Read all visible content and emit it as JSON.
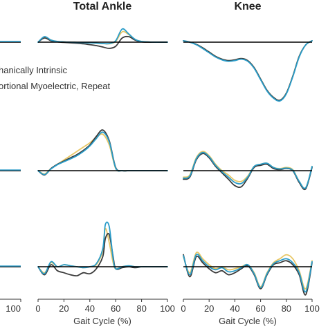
{
  "chart_data": [
    {
      "type": "line",
      "title": "Total Ankle",
      "row": 1,
      "xlabel": "",
      "x": [
        0,
        5,
        10,
        15,
        20,
        25,
        30,
        35,
        40,
        45,
        50,
        55,
        60,
        65,
        70,
        75,
        80,
        85,
        90,
        95,
        100
      ],
      "series": [
        {
          "name": "Mechanically Intrinsic",
          "color": "#e8c766",
          "values": [
            0,
            0.35,
            0.15,
            0.05,
            0.02,
            0,
            -0.02,
            -0.03,
            -0.05,
            -0.08,
            -0.1,
            -0.12,
            0.05,
            0.75,
            0.55,
            0.2,
            0.05,
            0.02,
            0,
            0,
            0
          ]
        },
        {
          "name": "Proportional Myoelectric",
          "color": "#3a3a3a",
          "values": [
            0,
            0.3,
            0.1,
            0.02,
            -0.02,
            -0.05,
            -0.08,
            -0.12,
            -0.18,
            -0.25,
            -0.35,
            -0.45,
            -0.3,
            0.3,
            0.4,
            0.15,
            0.02,
            0,
            0,
            0,
            0
          ]
        },
        {
          "name": "Proportional Myoelectric, Repeat",
          "color": "#2a9cc9",
          "values": [
            0,
            0.4,
            0.15,
            0.05,
            0.02,
            0,
            -0.02,
            -0.03,
            -0.05,
            -0.07,
            -0.1,
            -0.1,
            0.1,
            0.95,
            0.6,
            0.2,
            0.05,
            0.02,
            0,
            0,
            0
          ]
        }
      ]
    },
    {
      "type": "line",
      "title": "Knee",
      "row": 1,
      "xlabel": "",
      "x": [
        0,
        5,
        10,
        15,
        20,
        25,
        30,
        35,
        40,
        45,
        50,
        55,
        60,
        65,
        70,
        75,
        80,
        85,
        90,
        95,
        100
      ],
      "series": [
        {
          "name": "Mechanically Intrinsic",
          "color": "#e8c766",
          "values": [
            0.1,
            0,
            -0.15,
            -0.4,
            -0.7,
            -1,
            -1.2,
            -1.3,
            -1.25,
            -1.15,
            -1.3,
            -1.8,
            -2.6,
            -3.4,
            -3.9,
            -4.1,
            -3.6,
            -2.4,
            -1,
            -0.2,
            0.1
          ]
        },
        {
          "name": "Proportional Myoelectric",
          "color": "#3a3a3a",
          "values": [
            0.1,
            0,
            -0.15,
            -0.4,
            -0.7,
            -1,
            -1.2,
            -1.3,
            -1.25,
            -1.15,
            -1.3,
            -1.8,
            -2.6,
            -3.4,
            -3.9,
            -4.1,
            -3.6,
            -2.4,
            -1,
            -0.2,
            0.1
          ]
        },
        {
          "name": "Proportional Myoelectric, Repeat",
          "color": "#2a9cc9",
          "values": [
            0.1,
            0,
            -0.18,
            -0.45,
            -0.75,
            -1.05,
            -1.25,
            -1.35,
            -1.3,
            -1.2,
            -1.35,
            -1.85,
            -2.65,
            -3.45,
            -3.95,
            -4.15,
            -3.65,
            -2.45,
            -1.05,
            -0.2,
            0.1
          ]
        }
      ]
    },
    {
      "type": "line",
      "row": 2,
      "xlabel": "",
      "x": [
        0,
        5,
        10,
        15,
        20,
        25,
        30,
        35,
        40,
        45,
        50,
        55,
        60,
        65,
        70,
        75,
        80,
        85,
        90,
        95,
        100
      ],
      "series": [
        {
          "name": "Mechanically Intrinsic",
          "color": "#e8c766",
          "values": [
            0,
            -0.15,
            0.1,
            0.3,
            0.5,
            0.7,
            0.9,
            1.1,
            1.3,
            1.55,
            1.7,
            1.2,
            0.1,
            0,
            0,
            0,
            0,
            0,
            0,
            0,
            0
          ]
        },
        {
          "name": "Proportional Myoelectric",
          "color": "#3a3a3a",
          "values": [
            0,
            -0.2,
            0.1,
            0.3,
            0.45,
            0.6,
            0.75,
            0.95,
            1.2,
            1.6,
            1.9,
            1.4,
            0.15,
            0,
            0,
            0,
            0,
            0,
            0,
            0,
            0
          ]
        },
        {
          "name": "Proportional Myoelectric, Repeat",
          "color": "#2a9cc9",
          "values": [
            0,
            -0.18,
            0.08,
            0.28,
            0.42,
            0.55,
            0.7,
            0.9,
            1.15,
            1.5,
            1.8,
            1.35,
            0.12,
            0,
            0,
            0,
            0,
            0,
            0,
            0,
            0
          ]
        }
      ]
    },
    {
      "type": "line",
      "row": 2,
      "xlabel": "",
      "x": [
        0,
        5,
        10,
        15,
        20,
        25,
        30,
        35,
        40,
        45,
        50,
        55,
        60,
        65,
        70,
        75,
        80,
        85,
        90,
        95,
        100
      ],
      "series": [
        {
          "name": "Mechanically Intrinsic",
          "color": "#e8c766",
          "values": [
            -0.3,
            -0.2,
            0.6,
            0.9,
            0.7,
            0.3,
            0,
            -0.2,
            -0.45,
            -0.5,
            -0.25,
            0.2,
            0.3,
            0.35,
            0.15,
            0.1,
            0.15,
            0.05,
            -0.5,
            -0.8,
            0.2
          ]
        },
        {
          "name": "Proportional Myoelectric",
          "color": "#3a3a3a",
          "values": [
            -0.4,
            -0.3,
            0.5,
            0.8,
            0.6,
            0.2,
            -0.1,
            -0.4,
            -0.7,
            -0.75,
            -0.35,
            0.15,
            0.25,
            0.3,
            0.1,
            0.05,
            0.1,
            0,
            -0.55,
            -0.85,
            0.15
          ]
        },
        {
          "name": "Proportional Myoelectric, Repeat",
          "color": "#2a9cc9",
          "values": [
            -0.35,
            -0.25,
            0.55,
            0.85,
            0.65,
            0.25,
            -0.05,
            -0.3,
            -0.55,
            -0.6,
            -0.3,
            0.2,
            0.3,
            0.35,
            0.15,
            0.08,
            0.12,
            0.02,
            -0.5,
            -0.8,
            0.2
          ]
        }
      ]
    },
    {
      "type": "line",
      "row": 3,
      "xlabel": "Gait Cycle (%)",
      "x": [
        0,
        5,
        10,
        15,
        20,
        25,
        30,
        35,
        40,
        45,
        50,
        52,
        55,
        58,
        60,
        65,
        70,
        75,
        80,
        85,
        90,
        95,
        100
      ],
      "series": [
        {
          "name": "Mechanically Intrinsic",
          "color": "#e8c766",
          "values": [
            0,
            -0.3,
            0.2,
            0,
            0.1,
            0.05,
            0,
            -0.05,
            0,
            0.1,
            0.8,
            1.9,
            1.2,
            0.2,
            -0.1,
            0,
            0.05,
            0,
            0,
            0,
            0,
            0,
            0
          ]
        },
        {
          "name": "Proportional Myoelectric",
          "color": "#3a3a3a",
          "values": [
            0,
            -0.4,
            0.1,
            -0.2,
            -0.3,
            -0.4,
            -0.45,
            -0.3,
            -0.35,
            -0.1,
            0.5,
            1.4,
            1.6,
            0.5,
            -0.1,
            -0.05,
            0,
            -0.05,
            0,
            0,
            0,
            0,
            0
          ]
        },
        {
          "name": "Proportional Myoelectric, Repeat",
          "color": "#2a9cc9",
          "values": [
            0,
            -0.35,
            0.25,
            0,
            0.1,
            0.05,
            0,
            -0.05,
            0,
            0.15,
            0.9,
            2.1,
            2.0,
            0.4,
            -0.1,
            0,
            0.05,
            0,
            0,
            0,
            0,
            0,
            0
          ]
        }
      ]
    },
    {
      "type": "line",
      "row": 3,
      "xlabel": "Gait Cycle (%)",
      "x": [
        0,
        5,
        10,
        15,
        20,
        25,
        30,
        35,
        40,
        45,
        50,
        55,
        60,
        65,
        70,
        75,
        80,
        85,
        90,
        95,
        100
      ],
      "series": [
        {
          "name": "Mechanically Intrinsic",
          "color": "#e8c766",
          "values": [
            0.5,
            -0.3,
            0.7,
            0.4,
            0.1,
            -0.1,
            0,
            -0.15,
            -0.1,
            0,
            0.1,
            -0.3,
            -1,
            -0.3,
            0.2,
            0.4,
            0.6,
            0.4,
            -0.2,
            -1.1,
            0.3
          ]
        },
        {
          "name": "Proportional Myoelectric",
          "color": "#3a3a3a",
          "values": [
            0.6,
            -0.5,
            0.5,
            0.2,
            -0.1,
            -0.3,
            -0.2,
            -0.4,
            -0.3,
            -0.1,
            0.05,
            -0.4,
            -1.1,
            -0.4,
            0.1,
            0.2,
            0.3,
            0.1,
            -0.4,
            -1.4,
            0.2
          ]
        },
        {
          "name": "Proportional Myoelectric, Repeat",
          "color": "#2a9cc9",
          "values": [
            0.55,
            -0.4,
            0.6,
            0.3,
            0,
            -0.15,
            -0.05,
            -0.25,
            -0.2,
            -0.05,
            0.1,
            -0.35,
            -1.05,
            -0.35,
            0.15,
            0.3,
            0.4,
            0.2,
            -0.3,
            -1.25,
            0.25
          ]
        }
      ]
    }
  ],
  "left_column": {
    "row_values": [
      [
        0,
        0
      ],
      [
        0,
        0
      ],
      [
        0,
        0
      ]
    ],
    "ticks": [
      "100"
    ]
  },
  "x_ticks": [
    "0",
    "20",
    "40",
    "60",
    "80",
    "100"
  ],
  "xlabel": "Gait Cycle (%)",
  "legend": {
    "lines": [
      "hanically Intrinsic",
      "ortional Myoelectric, Repeat"
    ]
  },
  "titles": {
    "ankle": "Total Ankle",
    "knee": "Knee"
  }
}
